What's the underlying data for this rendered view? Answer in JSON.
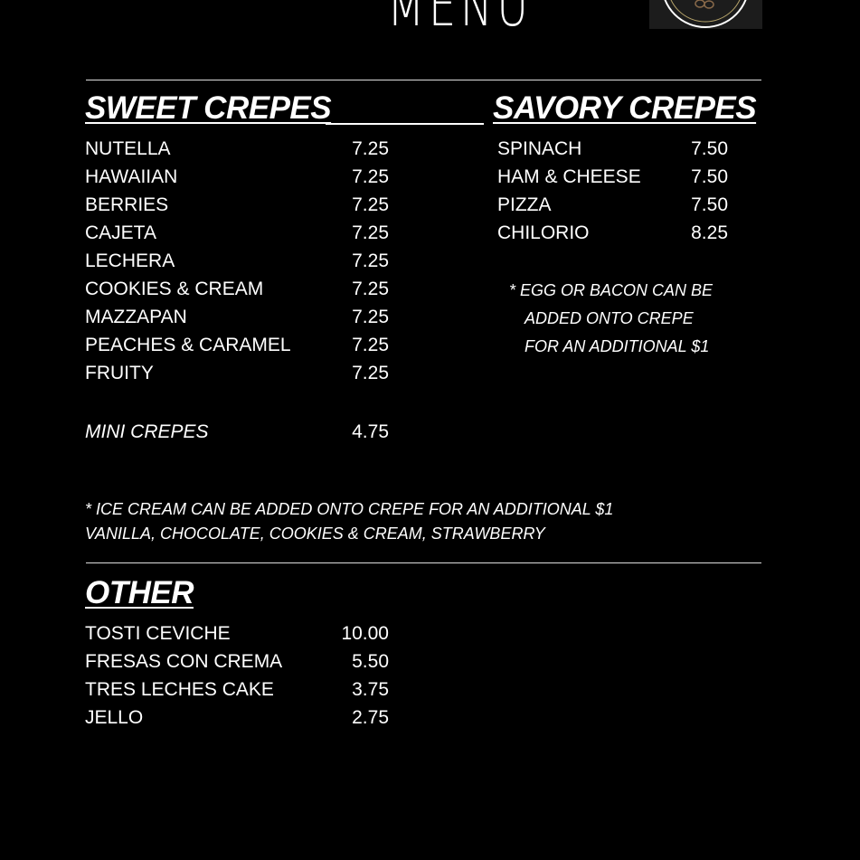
{
  "title": "MENU",
  "logo": {
    "colors": {
      "ring": "#ffffff",
      "inner": "#b5a36a",
      "beans": "#8a6a4a"
    }
  },
  "sweet": {
    "heading": "SWEET CREPES",
    "items": [
      {
        "name": "NUTELLA",
        "price": "7.25"
      },
      {
        "name": "HAWAIIAN",
        "price": "7.25"
      },
      {
        "name": "BERRIES",
        "price": "7.25"
      },
      {
        "name": "CAJETA",
        "price": "7.25"
      },
      {
        "name": "LECHERA",
        "price": "7.25"
      },
      {
        "name": "COOKIES & CREAM",
        "price": "7.25"
      },
      {
        "name": "MAZZAPAN",
        "price": "7.25"
      },
      {
        "name": "PEACHES & CARAMEL",
        "price": "7.25"
      },
      {
        "name": "FRUITY",
        "price": "7.25"
      }
    ],
    "mini": {
      "name": "MINI CREPES",
      "price": "4.75"
    },
    "note1": "* ICE CREAM CAN BE ADDED ONTO CREPE FOR AN ADDITIONAL $1",
    "note2": "VANILLA, CHOCOLATE, COOKIES & CREAM, STRAWBERRY"
  },
  "savory": {
    "heading": "SAVORY CREPES",
    "items": [
      {
        "name": "SPINACH",
        "price": "7.50"
      },
      {
        "name": "HAM & CHEESE",
        "price": "7.50"
      },
      {
        "name": "PIZZA",
        "price": "7.50"
      },
      {
        "name": "CHILORIO",
        "price": "8.25"
      }
    ],
    "note": [
      "* EGG OR BACON CAN BE",
      "ADDED ONTO CREPE",
      "FOR AN ADDITIONAL $1"
    ]
  },
  "other": {
    "heading": "OTHER",
    "items": [
      {
        "name": "TOSTI CEVICHE",
        "price": "10.00"
      },
      {
        "name": "FRESAS CON CREMA",
        "price": "5.50"
      },
      {
        "name": "TRES LECHES CAKE",
        "price": "3.75"
      },
      {
        "name": "JELLO",
        "price": "2.75"
      }
    ]
  }
}
